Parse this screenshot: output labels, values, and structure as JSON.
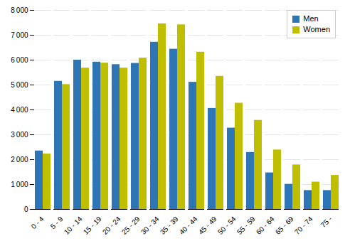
{
  "chart_data": {
    "type": "bar",
    "categories": [
      "0 - 4",
      "5 - 9",
      "10 - 14",
      "15 - 19",
      "20 - 24",
      "25 - 29",
      "30 - 34",
      "35 - 39",
      "40 - 44",
      "45 - 49",
      "50 - 54",
      "55 - 59",
      "60 - 64",
      "65 - 69",
      "70 - 74",
      "75 -"
    ],
    "series": [
      {
        "name": "Men",
        "color": "#2E75B6",
        "values": [
          2350,
          5150,
          6000,
          5920,
          5820,
          5870,
          6720,
          6440,
          5110,
          4060,
          3270,
          2290,
          1470,
          1010,
          760,
          760
        ]
      },
      {
        "name": "Women",
        "color": "#BFBF00",
        "values": [
          2230,
          5020,
          5680,
          5880,
          5680,
          6080,
          7460,
          7420,
          6320,
          5350,
          4270,
          3580,
          2390,
          1790,
          1100,
          1370
        ]
      }
    ],
    "ylim": [
      0,
      8000
    ],
    "yticks": [
      0,
      {
        "value": 1000,
        "label": "1 000"
      },
      {
        "value": 2000,
        "label": "2 000"
      },
      {
        "value": 3000,
        "label": "3 000"
      },
      {
        "value": 4000,
        "label": "4 000"
      },
      {
        "value": 5000,
        "label": "5 000"
      },
      {
        "value": 6000,
        "label": "6 000"
      },
      {
        "value": 7000,
        "label": "7 000"
      },
      {
        "value": 8000,
        "label": "8 000"
      }
    ],
    "grid": true,
    "legend": "upper right"
  }
}
